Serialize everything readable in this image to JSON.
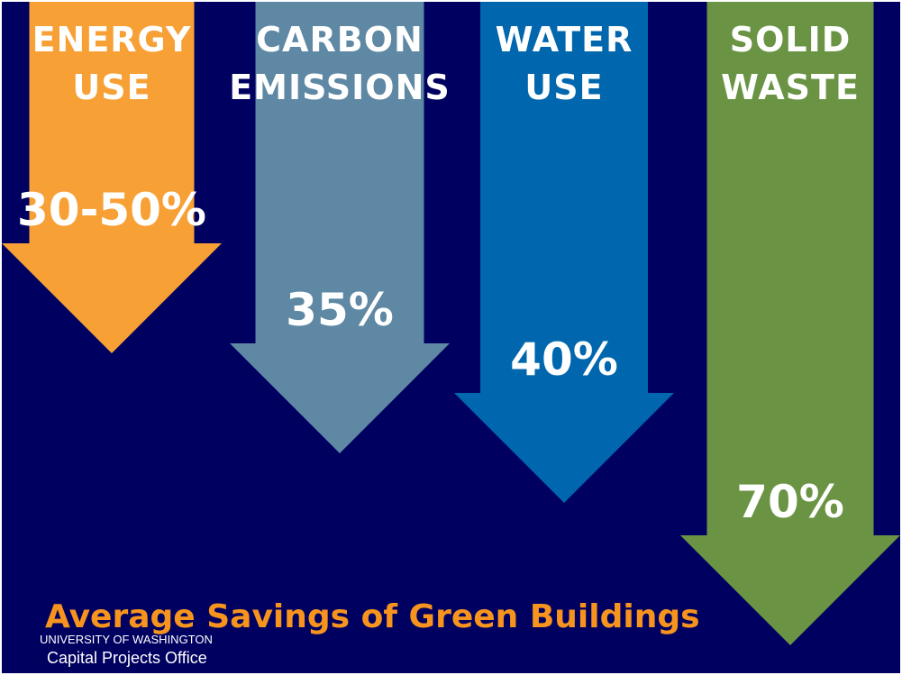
{
  "chart_data": {
    "type": "bar",
    "title": "Average Savings of Green Buildings",
    "categories": [
      {
        "line1": "ENERGY",
        "line2": "USE"
      },
      {
        "line1": "CARBON",
        "line2": "EMISSIONS"
      },
      {
        "line1": "WATER",
        "line2": "USE"
      },
      {
        "line1": "SOLID",
        "line2": "WASTE"
      }
    ],
    "value_labels": [
      "30-50%",
      "35%",
      "40%",
      "70%"
    ],
    "values": [
      40,
      35,
      40,
      70
    ],
    "colors": [
      "#F7A035",
      "#5E88A3",
      "#0066AD",
      "#6A9444"
    ],
    "background_color": "#000060",
    "title_color": "#F7941E"
  },
  "footer": {
    "org_name": "UNIVERSITY OF WASHINGTON",
    "department": "Capital Projects Office"
  }
}
